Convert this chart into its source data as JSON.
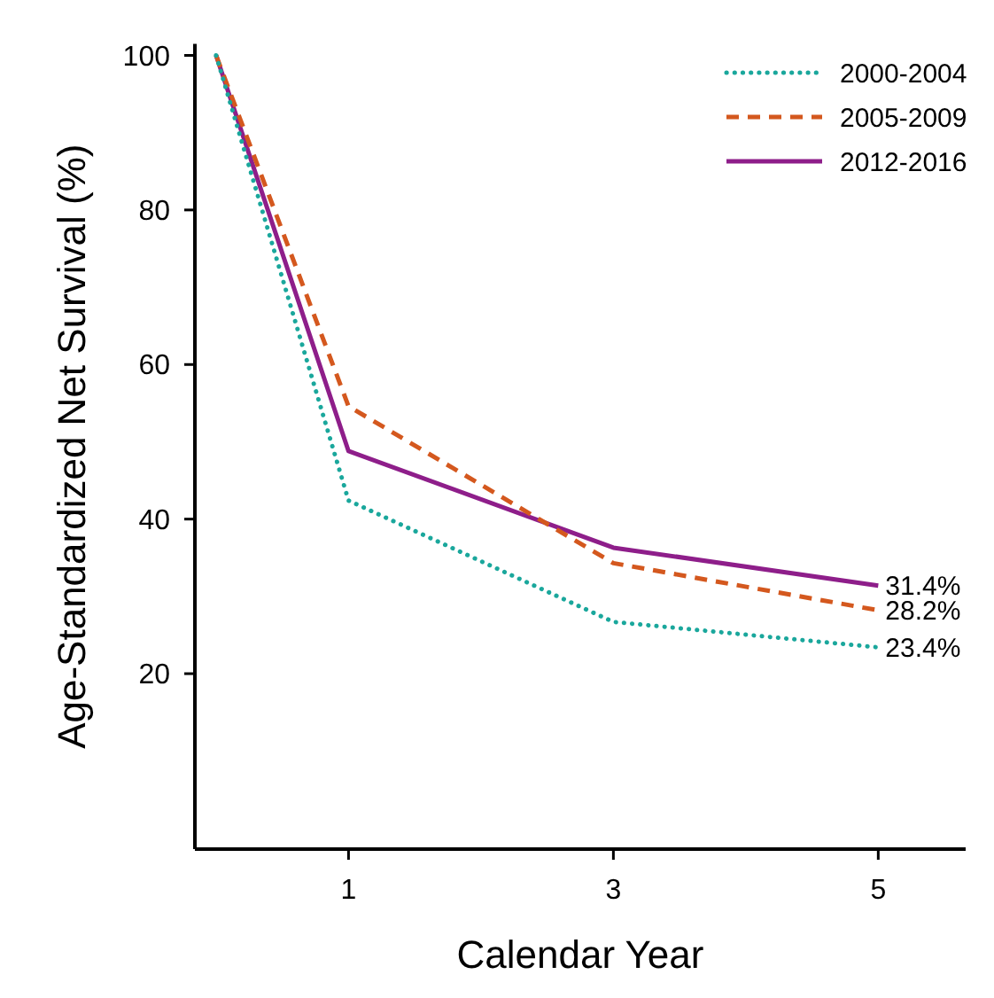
{
  "chart_data": {
    "type": "line",
    "xlabel": "Calendar Year",
    "ylabel": "Age-Standardized Net Survival (%)",
    "x": [
      0,
      1,
      3,
      5
    ],
    "xlim": [
      -0.16,
      5.66
    ],
    "xticks": [
      1,
      3,
      5
    ],
    "ylim": [
      -2.7,
      101.5
    ],
    "yticks": [
      20,
      40,
      60,
      80,
      100
    ],
    "legend": "top right",
    "grid": false,
    "marker": "none",
    "series": [
      {
        "name": "2000-2004",
        "color": "#1aa79c",
        "line_style": "dotted",
        "values": [
          100,
          42.4,
          26.7,
          23.4
        ],
        "value_labels": [
          null,
          null,
          null,
          "23.4%"
        ]
      },
      {
        "name": "2005-2009",
        "color": "#d4581e",
        "line_style": "dashed",
        "values": [
          100,
          54.6,
          34.3,
          28.2
        ],
        "value_labels": [
          null,
          null,
          null,
          "28.2%"
        ]
      },
      {
        "name": "2012-2016",
        "color": "#8e1e8a",
        "line_style": "solid",
        "values": [
          100,
          48.8,
          36.3,
          31.4
        ],
        "value_labels": [
          null,
          null,
          null,
          "31.4%"
        ]
      }
    ]
  }
}
